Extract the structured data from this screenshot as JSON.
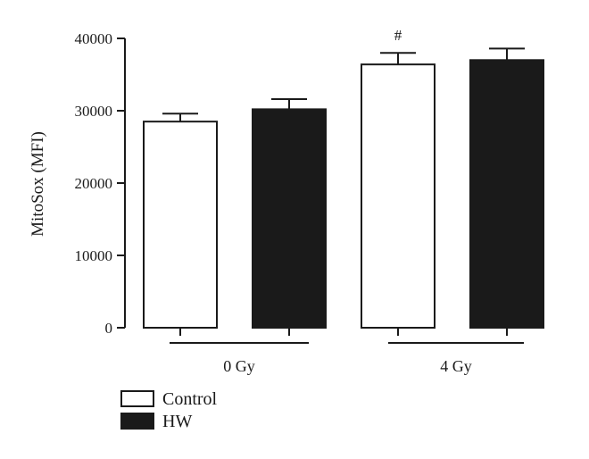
{
  "chart_data": {
    "type": "bar",
    "title": "",
    "xlabel": "",
    "ylabel": "MitoSox (MFI)",
    "ylim": [
      0,
      40000
    ],
    "y_ticks": [
      0,
      10000,
      20000,
      30000,
      40000
    ],
    "y_tick_labels": [
      "0",
      "10000",
      "20000",
      "30000",
      "40000"
    ],
    "grid": false,
    "legend_position": "bottom-left",
    "groups": [
      "0 Gy",
      "4 Gy"
    ],
    "series": [
      {
        "name": "Control",
        "color": "#ffffff",
        "values": [
          28500,
          36400
        ],
        "errors": [
          1100,
          1600
        ]
      },
      {
        "name": "HW",
        "color": "#1a1a1a",
        "values": [
          30200,
          37000
        ],
        "errors": [
          1400,
          1600
        ]
      }
    ],
    "annotations": [
      {
        "group": "4 Gy",
        "series": "Control",
        "text": "#"
      }
    ]
  }
}
